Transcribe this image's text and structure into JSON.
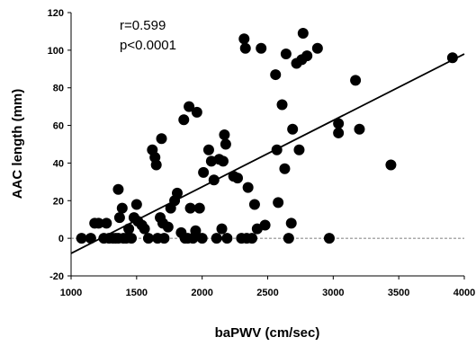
{
  "chart_data": {
    "type": "scatter",
    "title": "",
    "xlabel": "baPWV (cm/sec)",
    "ylabel": "AAC length (mm)",
    "xlim": [
      1000,
      4000
    ],
    "ylim": [
      -20,
      120
    ],
    "xticks": [
      1000,
      1500,
      2000,
      2500,
      3000,
      3500,
      4000
    ],
    "yticks": [
      -20,
      0,
      20,
      40,
      60,
      80,
      100,
      120
    ],
    "annotations": [
      "r=0.599",
      "p<0.0001"
    ],
    "reference_line": {
      "y": 0,
      "style": "dashed"
    },
    "regression_line": {
      "x": [
        1000,
        4000
      ],
      "y": [
        -8,
        98
      ]
    },
    "grid": false,
    "legend": "none",
    "marker_color": "#000000",
    "points": [
      {
        "x": 1080,
        "y": 0
      },
      {
        "x": 1150,
        "y": 0
      },
      {
        "x": 1180,
        "y": 8
      },
      {
        "x": 1210,
        "y": 8
      },
      {
        "x": 1250,
        "y": 0
      },
      {
        "x": 1270,
        "y": 8
      },
      {
        "x": 1290,
        "y": 0
      },
      {
        "x": 1320,
        "y": 0
      },
      {
        "x": 1340,
        "y": 0
      },
      {
        "x": 1360,
        "y": 0
      },
      {
        "x": 1370,
        "y": 11
      },
      {
        "x": 1360,
        "y": 26
      },
      {
        "x": 1390,
        "y": 16
      },
      {
        "x": 1400,
        "y": 0
      },
      {
        "x": 1420,
        "y": 0
      },
      {
        "x": 1440,
        "y": 5
      },
      {
        "x": 1460,
        "y": 0
      },
      {
        "x": 1480,
        "y": 11
      },
      {
        "x": 1500,
        "y": 18
      },
      {
        "x": 1510,
        "y": 9
      },
      {
        "x": 1540,
        "y": 7
      },
      {
        "x": 1560,
        "y": 5
      },
      {
        "x": 1590,
        "y": 0
      },
      {
        "x": 1620,
        "y": 47
      },
      {
        "x": 1640,
        "y": 43
      },
      {
        "x": 1650,
        "y": 39
      },
      {
        "x": 1660,
        "y": 0
      },
      {
        "x": 1680,
        "y": 11
      },
      {
        "x": 1690,
        "y": 53
      },
      {
        "x": 1700,
        "y": 8
      },
      {
        "x": 1710,
        "y": 0
      },
      {
        "x": 1740,
        "y": 6
      },
      {
        "x": 1760,
        "y": 16
      },
      {
        "x": 1790,
        "y": 20
      },
      {
        "x": 1810,
        "y": 24
      },
      {
        "x": 1840,
        "y": 3
      },
      {
        "x": 1860,
        "y": 63
      },
      {
        "x": 1870,
        "y": 0
      },
      {
        "x": 1890,
        "y": 0
      },
      {
        "x": 1900,
        "y": 70
      },
      {
        "x": 1910,
        "y": 16
      },
      {
        "x": 1930,
        "y": 0
      },
      {
        "x": 1950,
        "y": 4
      },
      {
        "x": 1960,
        "y": 67
      },
      {
        "x": 1980,
        "y": 16
      },
      {
        "x": 2000,
        "y": 0
      },
      {
        "x": 2010,
        "y": 35
      },
      {
        "x": 2050,
        "y": 47
      },
      {
        "x": 2070,
        "y": 41
      },
      {
        "x": 2090,
        "y": 31
      },
      {
        "x": 2110,
        "y": 0
      },
      {
        "x": 2130,
        "y": 42
      },
      {
        "x": 2150,
        "y": 5
      },
      {
        "x": 2160,
        "y": 41
      },
      {
        "x": 2170,
        "y": 55
      },
      {
        "x": 2180,
        "y": 50
      },
      {
        "x": 2190,
        "y": 0
      },
      {
        "x": 2240,
        "y": 33
      },
      {
        "x": 2270,
        "y": 32
      },
      {
        "x": 2300,
        "y": 0
      },
      {
        "x": 2320,
        "y": 106
      },
      {
        "x": 2330,
        "y": 101
      },
      {
        "x": 2340,
        "y": 0
      },
      {
        "x": 2350,
        "y": 27
      },
      {
        "x": 2380,
        "y": 0
      },
      {
        "x": 2400,
        "y": 18
      },
      {
        "x": 2420,
        "y": 5
      },
      {
        "x": 2450,
        "y": 101
      },
      {
        "x": 2480,
        "y": 7
      },
      {
        "x": 2560,
        "y": 87
      },
      {
        "x": 2570,
        "y": 47
      },
      {
        "x": 2580,
        "y": 19
      },
      {
        "x": 2610,
        "y": 71
      },
      {
        "x": 2630,
        "y": 37
      },
      {
        "x": 2640,
        "y": 98
      },
      {
        "x": 2660,
        "y": 0
      },
      {
        "x": 2680,
        "y": 8
      },
      {
        "x": 2690,
        "y": 58
      },
      {
        "x": 2720,
        "y": 93
      },
      {
        "x": 2740,
        "y": 47
      },
      {
        "x": 2760,
        "y": 95
      },
      {
        "x": 2770,
        "y": 109
      },
      {
        "x": 2800,
        "y": 97
      },
      {
        "x": 2880,
        "y": 101
      },
      {
        "x": 2970,
        "y": 0
      },
      {
        "x": 3040,
        "y": 61
      },
      {
        "x": 3040,
        "y": 56
      },
      {
        "x": 3170,
        "y": 84
      },
      {
        "x": 3200,
        "y": 58
      },
      {
        "x": 3440,
        "y": 39
      },
      {
        "x": 3910,
        "y": 96
      }
    ]
  }
}
